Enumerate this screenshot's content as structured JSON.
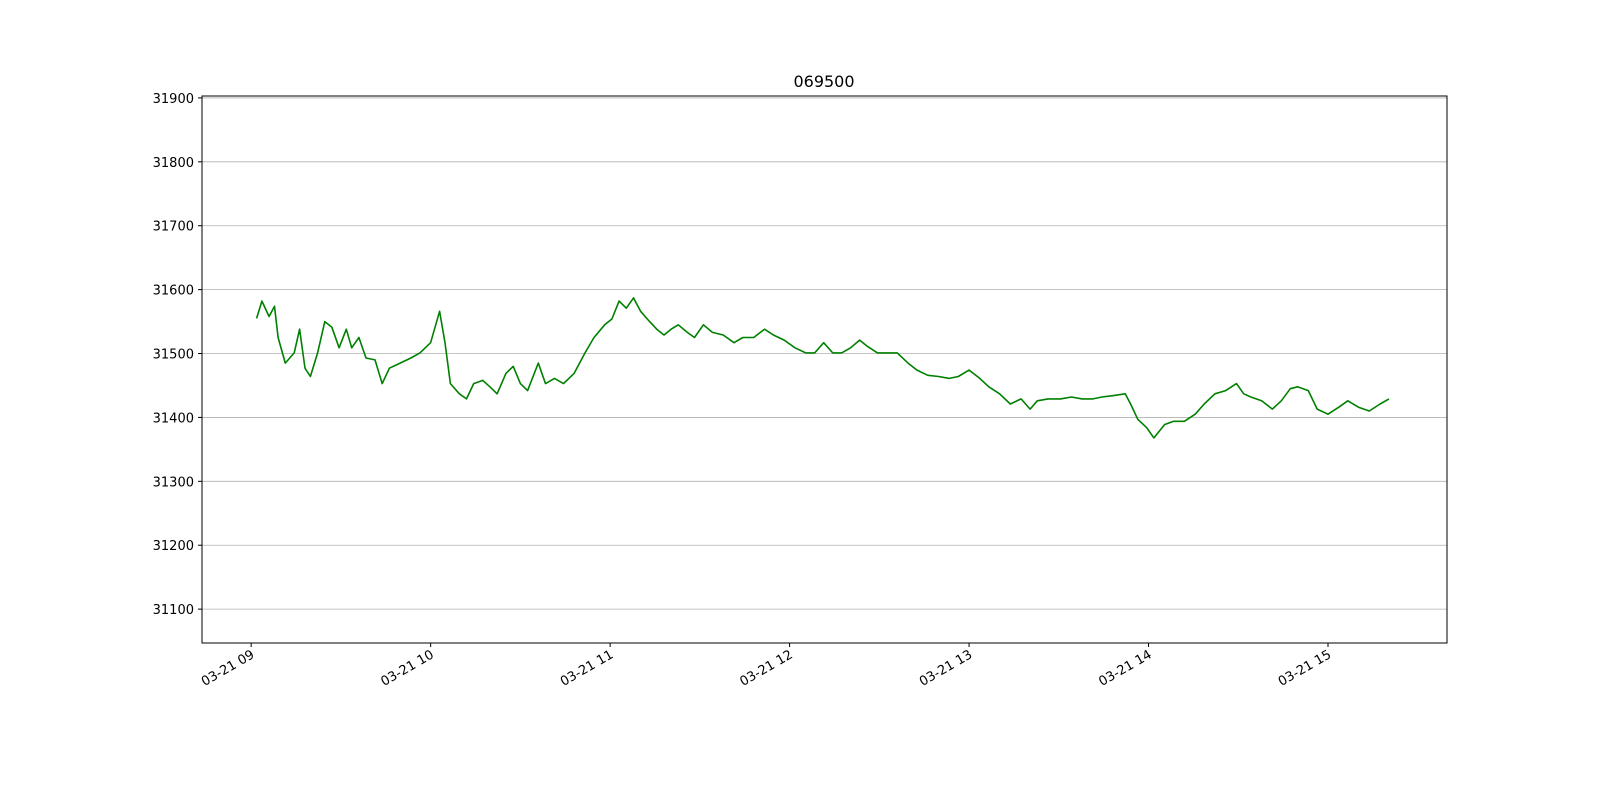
{
  "chart_data": {
    "type": "line",
    "title": "069500",
    "x": [
      9.03,
      9.06,
      9.1,
      9.13,
      9.15,
      9.19,
      9.24,
      9.27,
      9.3,
      9.33,
      9.37,
      9.41,
      9.45,
      9.49,
      9.53,
      9.56,
      9.6,
      9.64,
      9.69,
      9.73,
      9.77,
      9.83,
      9.89,
      9.94,
      10.0,
      10.05,
      10.08,
      10.11,
      10.16,
      10.2,
      10.24,
      10.29,
      10.33,
      10.37,
      10.42,
      10.46,
      10.5,
      10.54,
      10.6,
      10.64,
      10.69,
      10.74,
      10.8,
      10.86,
      10.91,
      10.97,
      11.01,
      11.05,
      11.09,
      11.13,
      11.17,
      11.22,
      11.26,
      11.3,
      11.34,
      11.38,
      11.43,
      11.47,
      11.52,
      11.57,
      11.63,
      11.69,
      11.74,
      11.8,
      11.86,
      11.91,
      11.97,
      12.03,
      12.09,
      12.14,
      12.19,
      12.24,
      12.29,
      12.34,
      12.39,
      12.43,
      12.49,
      12.54,
      12.6,
      12.66,
      12.71,
      12.77,
      12.83,
      12.89,
      12.94,
      13.0,
      13.06,
      13.11,
      13.17,
      13.23,
      13.29,
      13.34,
      13.38,
      13.44,
      13.51,
      13.57,
      13.63,
      13.69,
      13.74,
      13.8,
      13.87,
      13.9,
      13.94,
      13.99,
      14.03,
      14.09,
      14.14,
      14.2,
      14.26,
      14.31,
      14.37,
      14.43,
      14.49,
      14.53,
      14.57,
      14.63,
      14.69,
      14.74,
      14.79,
      14.83,
      14.89,
      14.94,
      15.0,
      15.06,
      15.11,
      15.17,
      15.23,
      15.29,
      15.34
    ],
    "series": [
      {
        "name": "069500",
        "color": "#008000",
        "values": [
          31555,
          31582,
          31558,
          31574,
          31525,
          31485,
          31501,
          31538,
          31477,
          31464,
          31501,
          31550,
          31541,
          31509,
          31538,
          31509,
          31525,
          31493,
          31490,
          31453,
          31477,
          31485,
          31493,
          31501,
          31517,
          31566,
          31517,
          31453,
          31437,
          31429,
          31453,
          31458,
          31448,
          31437,
          31469,
          31480,
          31453,
          31442,
          31485,
          31453,
          31461,
          31453,
          31469,
          31501,
          31525,
          31545,
          31554,
          31582,
          31571,
          31587,
          31566,
          31550,
          31538,
          31529,
          31538,
          31545,
          31533,
          31525,
          31545,
          31533,
          31529,
          31517,
          31525,
          31525,
          31538,
          31529,
          31521,
          31509,
          31501,
          31501,
          31517,
          31501,
          31501,
          31509,
          31521,
          31512,
          31501,
          31501,
          31501,
          31485,
          31474,
          31466,
          31464,
          31461,
          31464,
          31474,
          31461,
          31448,
          31437,
          31421,
          31429,
          31413,
          31426,
          31429,
          31429,
          31432,
          31429,
          31429,
          31432,
          31434,
          31437,
          31421,
          31397,
          31384,
          31368,
          31389,
          31394,
          31394,
          31405,
          31421,
          31437,
          31442,
          31453,
          31437,
          31432,
          31426,
          31413,
          31426,
          31445,
          31448,
          31442,
          31413,
          31405,
          31416,
          31426,
          31416,
          31410,
          31421,
          31429
        ]
      }
    ],
    "xlim": [
      8.726,
      15.663
    ],
    "xticks": [
      {
        "value": 9,
        "label": "03-21 09"
      },
      {
        "value": 10,
        "label": "03-21 10"
      },
      {
        "value": 11,
        "label": "03-21 11"
      },
      {
        "value": 12,
        "label": "03-21 12"
      },
      {
        "value": 13,
        "label": "03-21 13"
      },
      {
        "value": 14,
        "label": "03-21 14"
      },
      {
        "value": 15,
        "label": "03-21 15"
      }
    ],
    "ylim": [
      31047,
      31903
    ],
    "yticks": [
      31100,
      31200,
      31300,
      31400,
      31500,
      31600,
      31700,
      31800,
      31900
    ],
    "grid": "y"
  }
}
